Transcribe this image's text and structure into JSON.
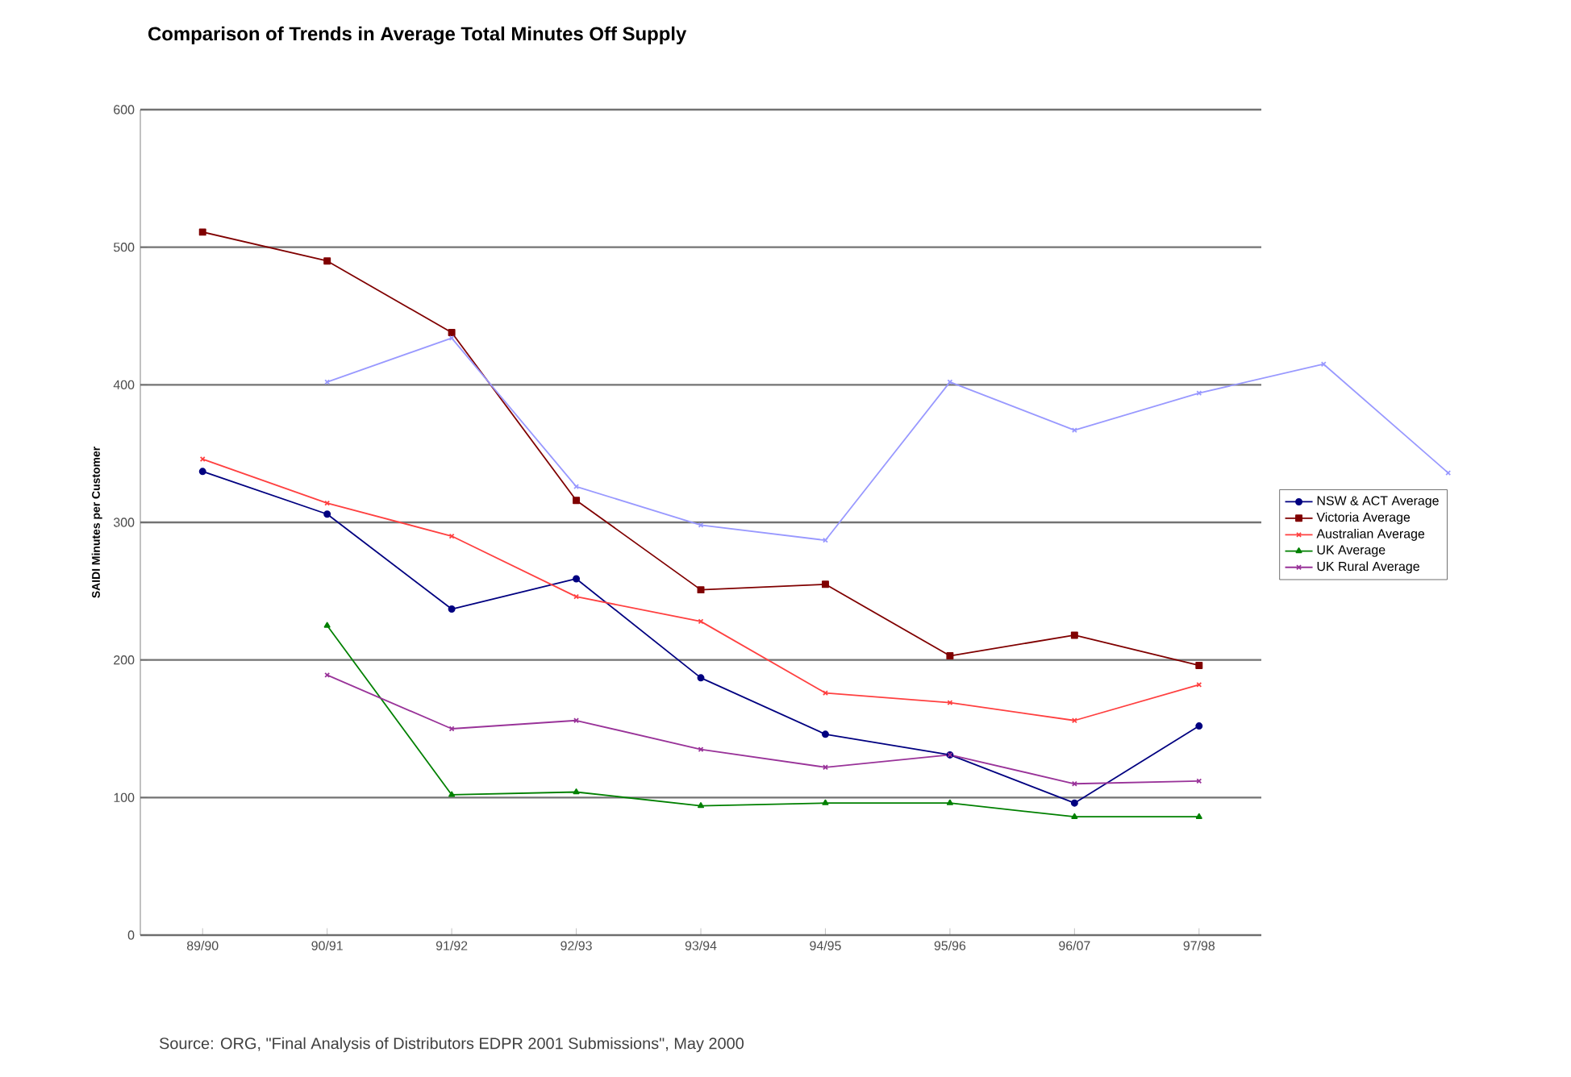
{
  "chart_data": {
    "type": "line",
    "title": "Comparison of Trends in Average Total Minutes Off Supply",
    "ylabel": "SAIDI Minutes per Customer",
    "categories": [
      "89/90",
      "90/91",
      "91/92",
      "92/93",
      "93/94",
      "94/95",
      "95/96",
      "96/07",
      "97/98",
      null,
      null
    ],
    "series": [
      {
        "name": "NSW & ACT Average",
        "color": "#000080",
        "marker": "circle",
        "values": [
          337,
          306,
          237,
          259,
          187,
          146,
          131,
          96,
          152,
          null,
          null
        ]
      },
      {
        "name": "Victoria Average",
        "color": "#800000",
        "marker": "square",
        "values": [
          511,
          490,
          438,
          316,
          251,
          255,
          203,
          218,
          196,
          null,
          null
        ]
      },
      {
        "name": "Australian Average",
        "color": "#ff4040",
        "marker": "cross",
        "values": [
          346,
          314,
          290,
          246,
          228,
          176,
          169,
          156,
          182,
          null,
          null
        ]
      },
      {
        "name": "UK Average",
        "color": "#008000",
        "marker": "triangle",
        "values": [
          null,
          225,
          102,
          104,
          94,
          96,
          96,
          86,
          86,
          null,
          null
        ]
      },
      {
        "name": "UK Rural Average",
        "color": "#993399",
        "marker": "cross",
        "values": [
          null,
          189,
          150,
          156,
          135,
          122,
          131,
          110,
          112,
          null,
          null
        ]
      },
      {
        "color": "#9999ff",
        "marker": "cross",
        "values": [
          null,
          402,
          434,
          326,
          298,
          287,
          402,
          367,
          394,
          415,
          336
        ]
      }
    ],
    "ylim": [
      0,
      600
    ],
    "yticks": [
      0,
      100,
      200,
      300,
      400,
      500,
      600
    ],
    "grid": "y",
    "legend": "right",
    "annotations": [
      "Source: ORG, \"Final Analysis of Distributors EDPR 2001 Submissions\", May 2000"
    ]
  }
}
